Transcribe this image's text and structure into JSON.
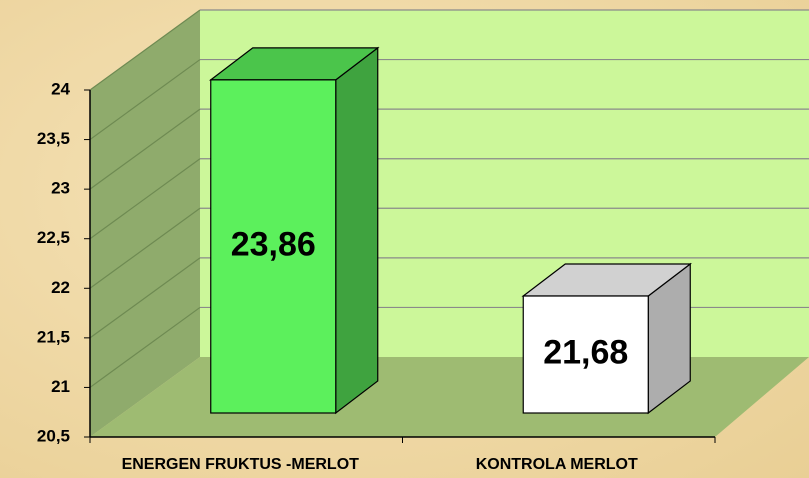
{
  "chart_data": {
    "type": "bar3d",
    "categories": [
      "ENERGEN FRUKTUS -MERLOT",
      "KONTROLA MERLOT"
    ],
    "values": [
      23.86,
      21.68
    ],
    "value_labels": [
      "23,86",
      "21,68"
    ],
    "colors": [
      "#5cf05c",
      "#ffffff"
    ],
    "ylim": [
      20.5,
      24
    ],
    "yticks": [
      {
        "value": 20.5,
        "label": "20,5"
      },
      21,
      {
        "value": 21.5,
        "label": "21,5"
      },
      22,
      {
        "value": 22.5,
        "label": "22,5"
      },
      23,
      {
        "value": 23.5,
        "label": "23,5"
      },
      24
    ],
    "grid": true
  }
}
